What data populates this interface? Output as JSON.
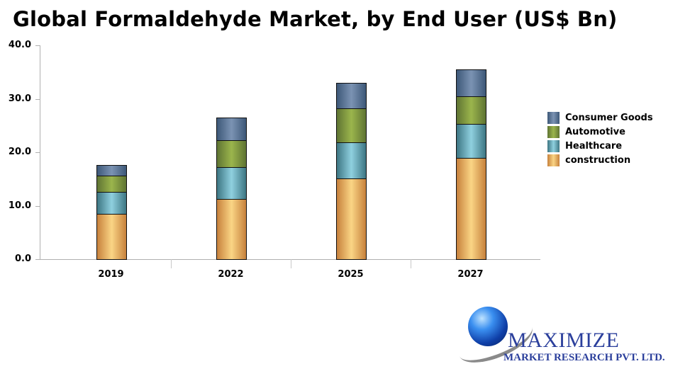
{
  "title": "Global Formaldehyde Market, by End User (US$ Bn)",
  "chart_data": {
    "type": "bar",
    "stacked": true,
    "title": "Global Formaldehyde Market, by End User (US$ Bn)",
    "xlabel": "",
    "ylabel": "",
    "ylim": [
      0,
      40
    ],
    "yticks": [
      "0.0",
      "10.0",
      "20.0",
      "30.0",
      "40.0"
    ],
    "grid": false,
    "legend_position": "right",
    "categories": [
      "2019",
      "2022",
      "2025",
      "2027"
    ],
    "series": [
      {
        "name": "construction",
        "color": "#e8a95e",
        "values": [
          8.5,
          11.3,
          15.1,
          18.9
        ]
      },
      {
        "name": "Healthcare",
        "color": "#5fa6b5",
        "values": [
          4.1,
          5.9,
          6.8,
          6.4
        ]
      },
      {
        "name": "Automotive",
        "color": "#7d9640",
        "values": [
          3.0,
          5.1,
          6.3,
          5.2
        ]
      },
      {
        "name": "Consumer Goods",
        "color": "#566f92",
        "values": [
          2.0,
          4.2,
          4.8,
          5.0
        ]
      }
    ],
    "totals": [
      17.6,
      26.5,
      33.0,
      35.5
    ]
  },
  "legend": [
    {
      "label": "Consumer Goods",
      "color": "#566f92"
    },
    {
      "label": "Automotive",
      "color": "#7d9640"
    },
    {
      "label": "Healthcare",
      "color": "#5fa6b5"
    },
    {
      "label": "construction",
      "color": "#e8a95e"
    }
  ],
  "logo": {
    "main": "MAXIMIZE",
    "sub": "MARKET RESEARCH PVT. LTD."
  }
}
